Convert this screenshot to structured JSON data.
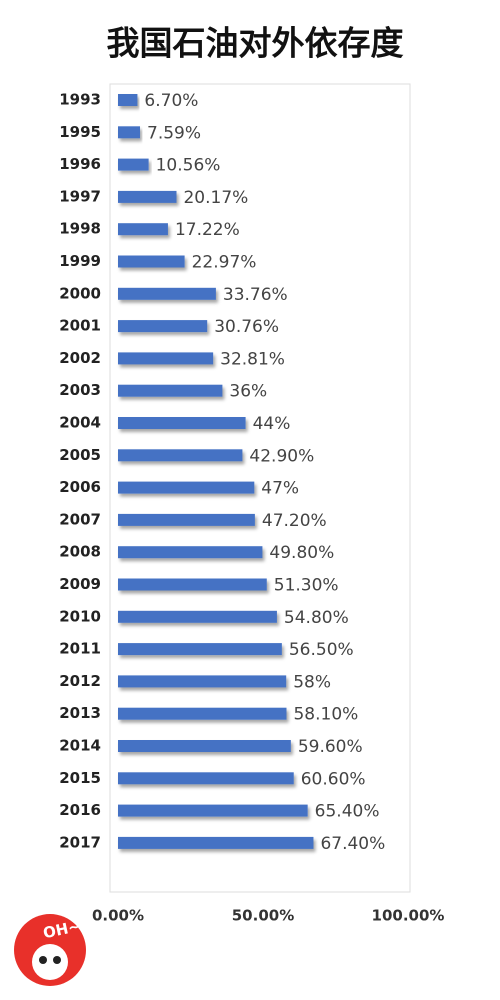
{
  "chart_data": {
    "type": "bar",
    "orientation": "horizontal",
    "title": "我国石油对外依存度",
    "categories": [
      "1993",
      "1995",
      "1996",
      "1997",
      "1998",
      "1999",
      "2000",
      "2001",
      "2002",
      "2003",
      "2004",
      "2005",
      "2006",
      "2007",
      "2008",
      "2009",
      "2010",
      "2011",
      "2012",
      "2013",
      "2014",
      "2015",
      "2016",
      "2017"
    ],
    "values": [
      6.7,
      7.59,
      10.56,
      20.17,
      17.22,
      22.97,
      33.76,
      30.76,
      32.81,
      36,
      44,
      42.9,
      47,
      47.2,
      49.8,
      51.3,
      54.8,
      56.5,
      58,
      58.1,
      59.6,
      60.6,
      65.4,
      67.4
    ],
    "value_labels": [
      "6.70%",
      "7.59%",
      "10.56%",
      "20.17%",
      "17.22%",
      "22.97%",
      "33.76%",
      "30.76%",
      "32.81%",
      "36%",
      "44%",
      "42.90%",
      "47%",
      "47.20%",
      "49.80%",
      "51.30%",
      "54.80%",
      "56.50%",
      "58%",
      "58.10%",
      "59.60%",
      "60.60%",
      "65.40%",
      "67.40%"
    ],
    "color": "#4472c4",
    "xlim": [
      0,
      100
    ],
    "xticks": [
      {
        "value": 0,
        "label": "0.00%"
      },
      {
        "value": 50,
        "label": "50.00%"
      },
      {
        "value": 100,
        "label": "100.00%"
      }
    ],
    "grid": false
  },
  "logo": {
    "text": "OH~"
  }
}
